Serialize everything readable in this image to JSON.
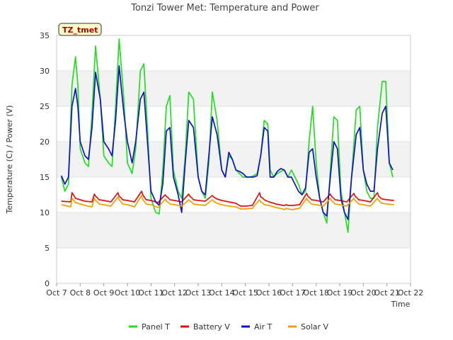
{
  "chart_data": {
    "type": "line",
    "title": "Tonzi Tower Met: Temperature and Power",
    "xlabel": "Time",
    "ylabel": "Temperature (C) / Power (V)",
    "ylim": [
      0,
      35
    ],
    "yticks": [
      0,
      5,
      10,
      15,
      20,
      25,
      30,
      35
    ],
    "xlim": [
      0,
      15
    ],
    "xtick_labels": [
      "Oct 7",
      "Oct 8",
      "Oct 9",
      "Oct 10",
      "Oct 11",
      "Oct 12",
      "Oct 13",
      "Oct 14",
      "Oct 15",
      "Oct 16",
      "Oct 17",
      "Oct 18",
      "Oct 19",
      "Oct 20",
      "Oct 21",
      "Oct 22"
    ],
    "badge": "TZ_tmet",
    "legend_position": "bottom",
    "series": [
      {
        "name": "Panel T",
        "color": "#22dd22",
        "x": [
          0.2,
          0.35,
          0.5,
          0.65,
          0.8,
          0.9,
          1.0,
          1.2,
          1.35,
          1.5,
          1.65,
          1.85,
          2.0,
          2.2,
          2.35,
          2.5,
          2.65,
          2.85,
          3.0,
          3.2,
          3.35,
          3.55,
          3.7,
          3.85,
          4.0,
          4.2,
          4.35,
          4.5,
          4.65,
          4.8,
          4.95,
          5.15,
          5.3,
          5.45,
          5.6,
          5.8,
          6.0,
          6.15,
          6.3,
          6.45,
          6.6,
          6.8,
          7.0,
          7.15,
          7.3,
          7.45,
          7.6,
          7.75,
          7.9,
          8.05,
          8.2,
          8.35,
          8.5,
          8.65,
          8.8,
          8.95,
          9.05,
          9.2,
          9.35,
          9.5,
          9.65,
          9.8,
          9.95,
          10.1,
          10.25,
          10.4,
          10.55,
          10.7,
          10.85,
          11.0,
          11.15,
          11.3,
          11.45,
          11.6,
          11.75,
          11.9,
          12.05,
          12.2,
          12.35,
          12.5,
          12.7,
          12.85,
          13.0,
          13.15,
          13.3,
          13.45,
          13.6,
          13.8,
          13.95,
          14.1,
          14.25
        ],
        "y": [
          15,
          13,
          14,
          28,
          32,
          28,
          19,
          17,
          16.5,
          24,
          33.5,
          26,
          18,
          17,
          16.5,
          25,
          34.5,
          26,
          17,
          15.5,
          19,
          30,
          31,
          22,
          12,
          10,
          9.8,
          16,
          25,
          26.5,
          16,
          13,
          12,
          18,
          27,
          26,
          15,
          13,
          12,
          17,
          27,
          23,
          16,
          15,
          18,
          17.5,
          16,
          15.5,
          15,
          15,
          15,
          15.2,
          15.5,
          18,
          23,
          22.5,
          16,
          15,
          15.5,
          15.8,
          16,
          15,
          16,
          15,
          14,
          12.5,
          13,
          20,
          25,
          17,
          12,
          10,
          8.5,
          16,
          23.5,
          23,
          13,
          10,
          7.2,
          15,
          24.5,
          25,
          16,
          13,
          12,
          12,
          22,
          28.5,
          28.5,
          17,
          15
        ]
      },
      {
        "name": "Battery V",
        "color": "#dd1111",
        "x": [
          0.2,
          0.6,
          0.65,
          0.75,
          0.8,
          1.0,
          1.2,
          1.5,
          1.6,
          1.65,
          1.75,
          1.8,
          2.0,
          2.3,
          2.6,
          2.65,
          2.75,
          2.8,
          3.0,
          3.3,
          3.6,
          3.65,
          3.75,
          3.8,
          4.0,
          4.3,
          4.6,
          4.65,
          4.75,
          4.8,
          5.0,
          5.3,
          5.6,
          5.65,
          5.75,
          5.8,
          6.0,
          6.3,
          6.6,
          6.65,
          6.75,
          6.8,
          7.0,
          7.3,
          7.6,
          7.65,
          7.75,
          7.8,
          8.0,
          8.3,
          8.6,
          8.65,
          8.75,
          8.8,
          9.0,
          9.3,
          9.6,
          9.65,
          9.75,
          9.8,
          10.0,
          10.3,
          10.6,
          10.65,
          10.75,
          10.8,
          11.0,
          11.3,
          11.6,
          11.65,
          11.75,
          11.8,
          12.0,
          12.3,
          12.6,
          12.65,
          12.75,
          12.8,
          13.0,
          13.3,
          13.6,
          13.65,
          13.75,
          13.8,
          14.0,
          14.3
        ],
        "y": [
          11.6,
          11.5,
          12.8,
          12.3,
          12,
          11.8,
          11.6,
          11.5,
          12.6,
          12.3,
          12,
          11.8,
          11.7,
          11.5,
          12.8,
          12.3,
          12,
          11.8,
          11.7,
          11.5,
          13,
          12.5,
          12,
          11.8,
          11.7,
          11.4,
          12.5,
          12.3,
          12,
          11.8,
          11.7,
          11.5,
          12.6,
          12.3,
          12,
          11.8,
          11.7,
          11.6,
          12.4,
          12.2,
          12,
          11.9,
          11.7,
          11.5,
          11.3,
          11.2,
          11,
          10.9,
          10.9,
          11,
          12.8,
          12.2,
          12,
          11.8,
          11.5,
          11.2,
          11,
          11,
          11.1,
          11,
          11,
          11.1,
          12.7,
          12.3,
          12,
          11.8,
          11.7,
          11.5,
          12.6,
          12.3,
          12,
          11.8,
          11.7,
          11.5,
          12.7,
          12.3,
          12,
          11.8,
          11.7,
          11.5,
          12.8,
          12.3,
          12,
          11.9,
          11.8,
          11.7
        ]
      },
      {
        "name": "Air T",
        "color": "#1111cc",
        "x": [
          0.2,
          0.35,
          0.5,
          0.65,
          0.8,
          0.9,
          1.0,
          1.2,
          1.35,
          1.5,
          1.65,
          1.85,
          2.0,
          2.2,
          2.35,
          2.5,
          2.65,
          2.85,
          3.0,
          3.2,
          3.35,
          3.55,
          3.7,
          3.85,
          4.0,
          4.2,
          4.35,
          4.5,
          4.65,
          4.8,
          4.95,
          5.15,
          5.3,
          5.45,
          5.6,
          5.8,
          6.0,
          6.15,
          6.3,
          6.45,
          6.6,
          6.8,
          7.0,
          7.15,
          7.3,
          7.45,
          7.6,
          7.75,
          7.9,
          8.05,
          8.2,
          8.35,
          8.5,
          8.65,
          8.8,
          8.95,
          9.05,
          9.2,
          9.35,
          9.5,
          9.65,
          9.8,
          9.95,
          10.1,
          10.25,
          10.4,
          10.55,
          10.7,
          10.85,
          11.0,
          11.15,
          11.3,
          11.45,
          11.6,
          11.75,
          11.9,
          12.05,
          12.2,
          12.35,
          12.5,
          12.7,
          12.85,
          13.0,
          13.15,
          13.3,
          13.45,
          13.6,
          13.8,
          13.95,
          14.1,
          14.25
        ],
        "y": [
          15.2,
          14,
          15,
          25,
          27.5,
          25,
          20,
          18,
          17.5,
          22,
          29.8,
          26,
          20,
          19,
          18,
          23,
          30.7,
          24,
          20,
          17,
          20,
          26,
          27,
          20,
          13,
          11.5,
          11,
          14,
          21.5,
          22,
          15,
          12.5,
          10,
          17,
          23,
          22,
          15,
          13,
          12.5,
          18,
          23.5,
          21,
          16,
          15,
          18.5,
          17.5,
          16,
          15.8,
          15.5,
          15,
          15,
          15,
          15.2,
          18,
          22,
          21.5,
          15,
          15,
          15.8,
          16.2,
          16,
          15,
          15,
          14,
          13,
          12.5,
          13.5,
          18.5,
          19,
          15,
          12,
          10,
          9.5,
          15,
          20,
          19,
          12,
          10,
          9,
          15,
          21,
          22,
          16,
          14,
          13,
          13,
          19,
          24,
          25,
          17,
          16
        ]
      },
      {
        "name": "Solar V",
        "color": "#f0a000",
        "x": [
          0.2,
          0.6,
          0.65,
          0.75,
          0.8,
          1.0,
          1.2,
          1.5,
          1.6,
          1.65,
          1.75,
          1.8,
          2.0,
          2.3,
          2.6,
          2.65,
          2.75,
          2.8,
          3.0,
          3.3,
          3.6,
          3.65,
          3.75,
          3.8,
          4.0,
          4.3,
          4.6,
          4.65,
          4.75,
          4.8,
          5.0,
          5.3,
          5.6,
          5.65,
          5.75,
          5.8,
          6.0,
          6.3,
          6.6,
          6.65,
          6.75,
          6.8,
          7.0,
          7.3,
          7.6,
          7.65,
          7.75,
          7.8,
          8.0,
          8.3,
          8.6,
          8.65,
          8.75,
          8.8,
          9.0,
          9.3,
          9.6,
          9.65,
          9.75,
          9.8,
          10.0,
          10.3,
          10.6,
          10.65,
          10.75,
          10.8,
          11.0,
          11.3,
          11.6,
          11.65,
          11.75,
          11.8,
          12.0,
          12.3,
          12.6,
          12.65,
          12.75,
          12.8,
          13.0,
          13.3,
          13.6,
          13.65,
          13.75,
          13.8,
          14.0,
          14.3
        ],
        "y": [
          11.1,
          10.8,
          12,
          11.6,
          11.4,
          11.2,
          11,
          10.8,
          12,
          11.7,
          11.4,
          11.2,
          11.1,
          10.9,
          12.2,
          11.8,
          11.4,
          11.2,
          11.1,
          10.8,
          12.4,
          11.8,
          11.4,
          11.2,
          11.1,
          10.7,
          11.9,
          11.6,
          11.4,
          11.2,
          11.1,
          10.9,
          11.8,
          11.6,
          11.4,
          11.2,
          11.1,
          11,
          11.8,
          11.6,
          11.4,
          11.3,
          11.1,
          10.9,
          10.8,
          10.7,
          10.6,
          10.5,
          10.5,
          10.6,
          11.8,
          11.5,
          11.3,
          11.1,
          11,
          10.7,
          10.5,
          10.4,
          10.6,
          10.5,
          10.4,
          10.6,
          12,
          11.7,
          11.4,
          11.2,
          11.1,
          10.9,
          12,
          11.7,
          11.4,
          11.2,
          11.1,
          10.9,
          12,
          11.7,
          11.4,
          11.2,
          11.1,
          10.9,
          12,
          11.7,
          11.4,
          11.3,
          11.2,
          11.1
        ]
      }
    ]
  }
}
